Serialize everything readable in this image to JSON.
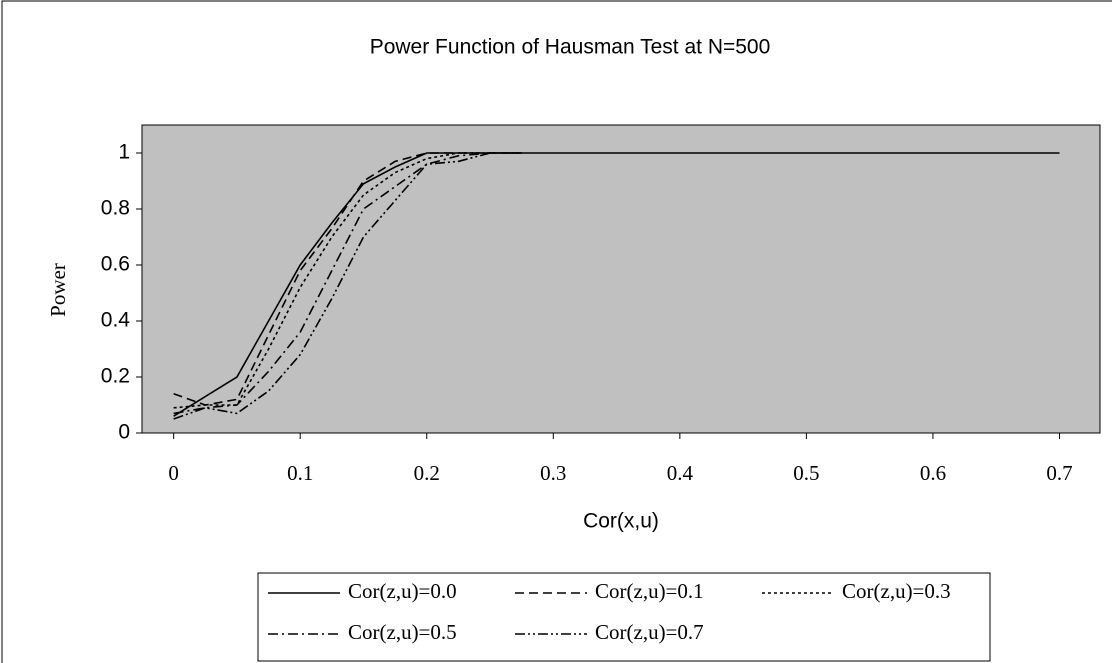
{
  "chart_data": {
    "type": "line",
    "title": "Power Function of Hausman Test at N=500",
    "x_label": "Cor(x,u)",
    "y_label": "Power",
    "x": [
      0,
      0.025,
      0.05,
      0.075,
      0.1,
      0.125,
      0.15,
      0.175,
      0.2,
      0.225,
      0.25,
      0.275,
      0.7
    ],
    "series": [
      {
        "name": "Cor(z,u)=0.0",
        "color": "#000000",
        "dash": "none",
        "values": [
          0.06,
          0.13,
          0.2,
          0.4,
          0.6,
          0.75,
          0.89,
          0.95,
          1,
          1,
          1,
          1,
          1
        ]
      },
      {
        "name": "Cor(z,u)=0.1",
        "color": "#000000",
        "dash": "9,5",
        "values": [
          0.14,
          0.1,
          0.12,
          0.35,
          0.58,
          0.73,
          0.9,
          0.97,
          1,
          1,
          1,
          1,
          null
        ]
      },
      {
        "name": "Cor(z,u)=0.3",
        "color": "#000000",
        "dash": "3,3",
        "values": [
          0.09,
          0.1,
          0.1,
          0.3,
          0.52,
          0.7,
          0.85,
          0.93,
          0.98,
          1,
          1,
          1,
          null
        ]
      },
      {
        "name": "Cor(z,u)=0.5",
        "color": "#000000",
        "dash": "10,4,2,4",
        "values": [
          0.07,
          0.09,
          0.1,
          0.22,
          0.36,
          0.58,
          0.8,
          0.88,
          0.96,
          0.99,
          1,
          1,
          null
        ]
      },
      {
        "name": "Cor(z,u)=0.7",
        "color": "#000000",
        "dash": "10,3,2,3,2,3",
        "values": [
          0.05,
          0.09,
          0.07,
          0.15,
          0.28,
          0.48,
          0.7,
          0.83,
          0.96,
          0.97,
          1,
          1,
          null
        ]
      }
    ],
    "xlim": [
      -0.025,
      0.732
    ],
    "xticks": [
      0,
      0.1,
      0.2,
      0.3,
      0.4,
      0.5,
      0.6,
      0.7
    ],
    "ylim": [
      0,
      1.1
    ],
    "yticks": [
      0,
      0.2,
      0.4,
      0.6,
      0.8,
      1
    ],
    "plot_background": "#c0c0c0"
  }
}
